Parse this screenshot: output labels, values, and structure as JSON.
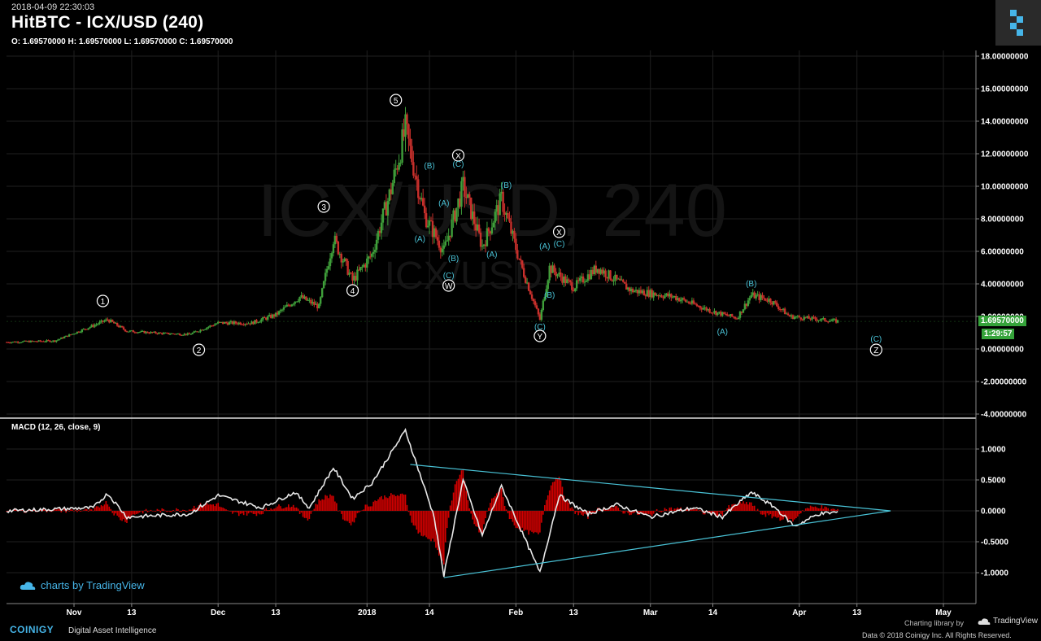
{
  "header": {
    "timestamp": "2018-04-09 22:30:03",
    "title": "HitBTC - ICX/USD (240)",
    "ohlc": "O: 1.69570000 H: 1.69570000 L: 1.69570000 C: 1.69570000",
    "watermark_main": "ICX/USD, 240",
    "watermark_sub": "ICX/USD"
  },
  "indicator": {
    "label": "MACD (12, 26, close, 9)"
  },
  "price_tag": {
    "value": "1.69570000",
    "countdown": "1:29:57",
    "color": "#35a33a"
  },
  "footer": {
    "tradingview_watermark": "charts by TradingView",
    "brand": "COINIGY",
    "tagline": "Digital Asset Intelligence",
    "library": "Charting library by",
    "library_brand": "TradingView",
    "copyright": "Data © 2018  Coinigy Inc. All Rights Reserved."
  },
  "colors": {
    "up": "#3f9f3a",
    "down": "#c9302c",
    "wave_cyan": "#49c2d6",
    "macd_line": "#e8e8e8",
    "histogram": "#d10000",
    "brand_blue": "#46b5e8"
  },
  "chart_data": [
    {
      "type": "candlestick",
      "title": "HitBTC - ICX/USD (240)",
      "x_tick_labels": [
        "Nov",
        "13",
        "Dec",
        "13",
        "2018",
        "14",
        "Feb",
        "13",
        "Mar",
        "14",
        "Apr",
        "13",
        "May"
      ],
      "y_tick_labels": [
        "18.00000000",
        "16.00000000",
        "14.00000000",
        "12.00000000",
        "10.00000000",
        "8.00000000",
        "6.00000000",
        "4.00000000",
        "2.00000000",
        "0.00000000",
        "-2.00000000",
        "-4.00000000"
      ],
      "ylim": [
        -4,
        18
      ],
      "last_price": 1.6957,
      "approx_close_series": [
        {
          "date": "2017-10-18",
          "close": 0.42
        },
        {
          "date": "2017-10-28",
          "close": 0.5
        },
        {
          "date": "2017-11-03",
          "close": 1.2
        },
        {
          "date": "2017-11-08",
          "close": 1.8
        },
        {
          "date": "2017-11-12",
          "close": 1.1
        },
        {
          "date": "2017-11-20",
          "close": 0.95
        },
        {
          "date": "2017-11-25",
          "close": 0.9
        },
        {
          "date": "2017-12-01",
          "close": 1.6
        },
        {
          "date": "2017-12-08",
          "close": 1.6
        },
        {
          "date": "2017-12-13",
          "close": 2.1
        },
        {
          "date": "2017-12-18",
          "close": 3.2
        },
        {
          "date": "2017-12-22",
          "close": 2.6
        },
        {
          "date": "2017-12-25",
          "close": 6.8
        },
        {
          "date": "2017-12-29",
          "close": 4.2
        },
        {
          "date": "2018-01-02",
          "close": 5.8
        },
        {
          "date": "2018-01-06",
          "close": 9.8
        },
        {
          "date": "2018-01-09",
          "close": 13.5
        },
        {
          "date": "2018-01-13",
          "close": 8.2
        },
        {
          "date": "2018-01-17",
          "close": 6.0
        },
        {
          "date": "2018-01-21",
          "close": 10.0
        },
        {
          "date": "2018-01-25",
          "close": 6.3
        },
        {
          "date": "2018-01-29",
          "close": 9.2
        },
        {
          "date": "2018-02-02",
          "close": 5.2
        },
        {
          "date": "2018-02-06",
          "close": 1.8
        },
        {
          "date": "2018-02-08",
          "close": 5.0
        },
        {
          "date": "2018-02-13",
          "close": 3.8
        },
        {
          "date": "2018-02-18",
          "close": 5.0
        },
        {
          "date": "2018-02-25",
          "close": 3.6
        },
        {
          "date": "2018-03-06",
          "close": 3.2
        },
        {
          "date": "2018-03-14",
          "close": 2.3
        },
        {
          "date": "2018-03-19",
          "close": 1.9
        },
        {
          "date": "2018-03-22",
          "close": 3.3
        },
        {
          "date": "2018-03-26",
          "close": 3.0
        },
        {
          "date": "2018-03-30",
          "close": 2.0
        },
        {
          "date": "2018-04-09",
          "close": 1.7
        }
      ],
      "wave_labels": [
        {
          "text": "1",
          "date": "2017-11-07",
          "price": 2.95,
          "style": "circled-white"
        },
        {
          "text": "2",
          "date": "2017-11-27",
          "price": -0.05,
          "style": "circled-white"
        },
        {
          "text": "3",
          "date": "2017-12-23",
          "price": 8.75,
          "style": "circled-white"
        },
        {
          "text": "4",
          "date": "2017-12-29",
          "price": 3.6,
          "style": "circled-white"
        },
        {
          "text": "5",
          "date": "2018-01-07",
          "price": 15.3,
          "style": "circled-white"
        },
        {
          "text": "X",
          "date": "2018-01-20",
          "price": 11.9,
          "style": "circled-white"
        },
        {
          "text": "(B)",
          "date": "2018-01-14",
          "price": 11.3,
          "style": "cyan"
        },
        {
          "text": "(C)",
          "date": "2018-01-20",
          "price": 11.4,
          "style": "cyan"
        },
        {
          "text": "(A)",
          "date": "2018-01-12",
          "price": 6.8,
          "style": "cyan"
        },
        {
          "text": "(A)",
          "date": "2018-01-17",
          "price": 9.0,
          "style": "cyan"
        },
        {
          "text": "(B)",
          "date": "2018-01-19",
          "price": 5.6,
          "style": "cyan"
        },
        {
          "text": "(C)",
          "date": "2018-01-18",
          "price": 4.55,
          "style": "cyan"
        },
        {
          "text": "W",
          "date": "2018-01-18",
          "price": 3.9,
          "style": "circled-white"
        },
        {
          "text": "(A)",
          "date": "2018-01-27",
          "price": 5.85,
          "style": "cyan"
        },
        {
          "text": "(B)",
          "date": "2018-01-30",
          "price": 10.1,
          "style": "cyan"
        },
        {
          "text": "(C)",
          "date": "2018-02-06",
          "price": 1.4,
          "style": "cyan"
        },
        {
          "text": "Y",
          "date": "2018-02-06",
          "price": 0.8,
          "style": "circled-white"
        },
        {
          "text": "(A)",
          "date": "2018-02-07",
          "price": 6.35,
          "style": "cyan"
        },
        {
          "text": "(B)",
          "date": "2018-02-08",
          "price": 3.35,
          "style": "cyan"
        },
        {
          "text": "X",
          "date": "2018-02-10",
          "price": 7.2,
          "style": "circled-white"
        },
        {
          "text": "(C)",
          "date": "2018-02-10",
          "price": 6.5,
          "style": "cyan"
        },
        {
          "text": "(A)",
          "date": "2018-03-16",
          "price": 1.1,
          "style": "cyan"
        },
        {
          "text": "(B)",
          "date": "2018-03-22",
          "price": 4.05,
          "style": "cyan"
        },
        {
          "text": "(C)",
          "date": "2018-04-17",
          "price": 0.65,
          "style": "cyan"
        },
        {
          "text": "Z",
          "date": "2018-04-17",
          "price": -0.05,
          "style": "circled-white"
        }
      ]
    },
    {
      "type": "line",
      "title": "MACD (12, 26, close, 9)",
      "y_tick_labels": [
        "1.0000",
        "0.5000",
        "0.0000",
        "-0.5000",
        "-1.0000"
      ],
      "ylim": [
        -1.4,
        1.4
      ],
      "series": [
        {
          "name": "MACD",
          "points": [
            {
              "date": "2017-10-18",
              "value": 0.0
            },
            {
              "date": "2017-11-05",
              "value": 0.05
            },
            {
              "date": "2017-11-08",
              "value": 0.28
            },
            {
              "date": "2017-11-12",
              "value": -0.1
            },
            {
              "date": "2017-11-25",
              "value": -0.05
            },
            {
              "date": "2017-12-01",
              "value": 0.25
            },
            {
              "date": "2017-12-10",
              "value": 0.05
            },
            {
              "date": "2017-12-17",
              "value": 0.3
            },
            {
              "date": "2017-12-20",
              "value": 0.05
            },
            {
              "date": "2017-12-25",
              "value": 0.7
            },
            {
              "date": "2017-12-29",
              "value": 0.2
            },
            {
              "date": "2018-01-02",
              "value": 0.45
            },
            {
              "date": "2018-01-09",
              "value": 1.3
            },
            {
              "date": "2018-01-15",
              "value": -0.1
            },
            {
              "date": "2018-01-17",
              "value": -1.05
            },
            {
              "date": "2018-01-21",
              "value": 0.5
            },
            {
              "date": "2018-01-25",
              "value": -0.4
            },
            {
              "date": "2018-01-29",
              "value": 0.4
            },
            {
              "date": "2018-02-02",
              "value": -0.3
            },
            {
              "date": "2018-02-06",
              "value": -1.0
            },
            {
              "date": "2018-02-10",
              "value": 0.25
            },
            {
              "date": "2018-02-16",
              "value": -0.05
            },
            {
              "date": "2018-02-22",
              "value": 0.1
            },
            {
              "date": "2018-03-01",
              "value": -0.1
            },
            {
              "date": "2018-03-10",
              "value": 0.05
            },
            {
              "date": "2018-03-16",
              "value": -0.1
            },
            {
              "date": "2018-03-22",
              "value": 0.3
            },
            {
              "date": "2018-03-27",
              "value": 0.05
            },
            {
              "date": "2018-03-31",
              "value": -0.25
            },
            {
              "date": "2018-04-05",
              "value": -0.05
            },
            {
              "date": "2018-04-09",
              "value": -0.02
            }
          ]
        }
      ],
      "trendlines": [
        {
          "from": {
            "date": "2018-01-10",
            "value": 0.75
          },
          "to": {
            "date": "2018-04-20",
            "value": 0.0
          }
        },
        {
          "from": {
            "date": "2018-01-17",
            "value": -1.08
          },
          "to": {
            "date": "2018-04-20",
            "value": 0.0
          }
        }
      ]
    }
  ]
}
